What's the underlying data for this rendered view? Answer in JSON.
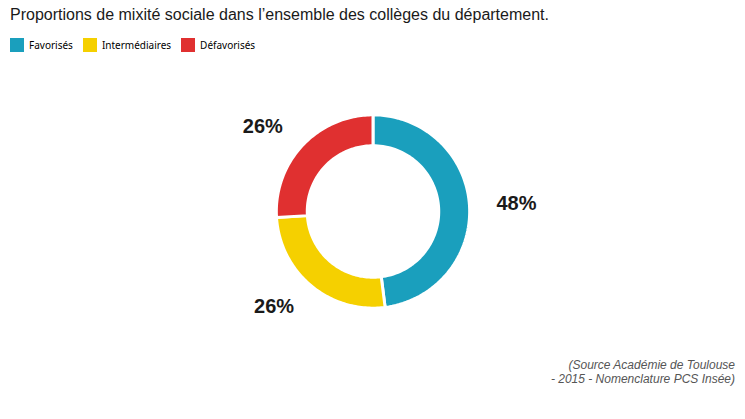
{
  "chart_data": {
    "type": "donut",
    "title": "Proportions de mixité sociale dans l’ensemble des collèges du département.",
    "categories": [
      "Favorisés",
      "Intermédiaires",
      "Défavorisés"
    ],
    "values": [
      48,
      26,
      26
    ],
    "value_labels": [
      "48%",
      "26%",
      "26%"
    ],
    "data_labels": true,
    "colors": [
      "#1a9fbd",
      "#f5d000",
      "#e03030"
    ],
    "annotations": [
      "(Source Académie de Toulouse\n- 2015 - Nomenclature PCS Insée)"
    ]
  }
}
